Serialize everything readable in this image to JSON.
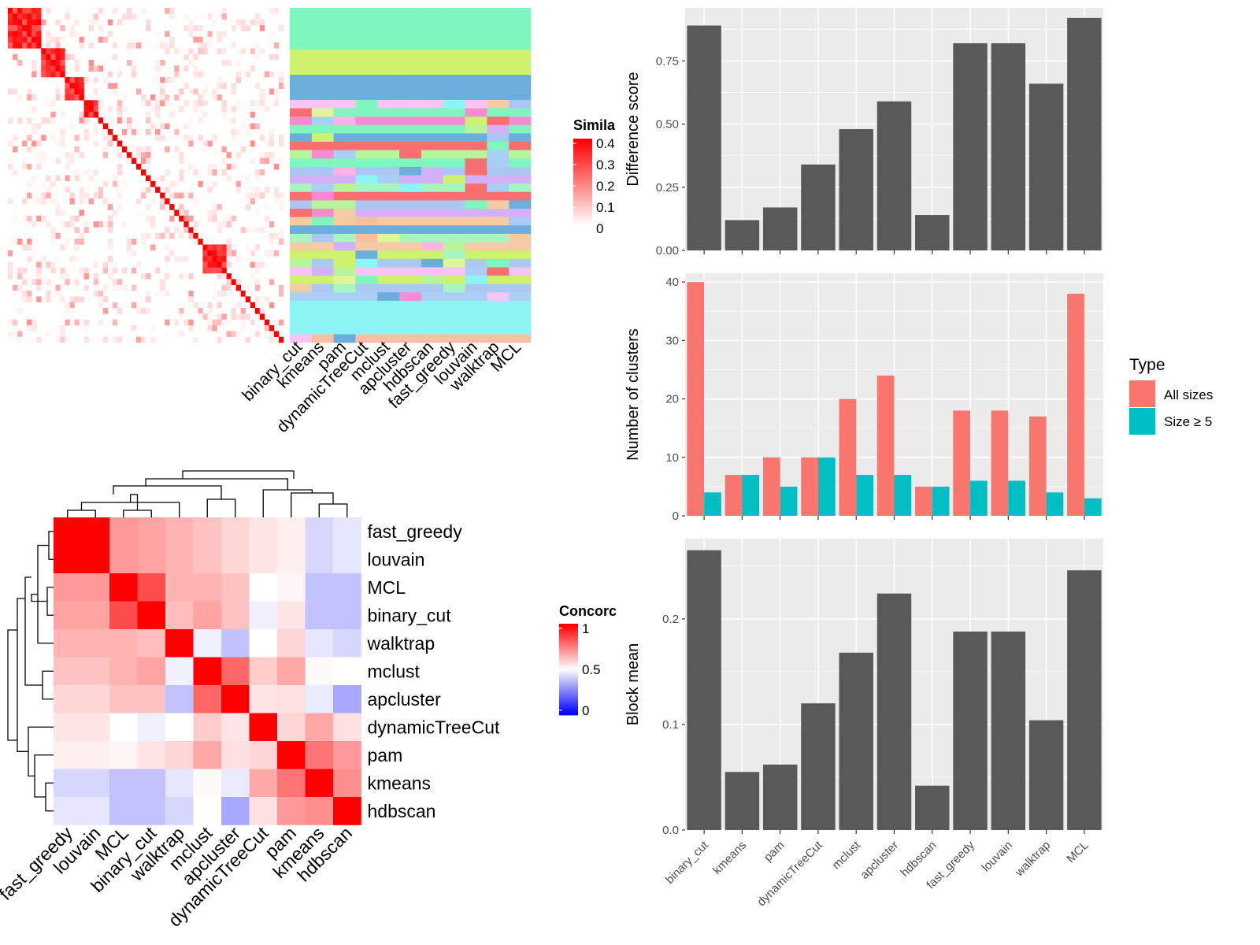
{
  "colors": {
    "panel_bg": "#EBEBEB",
    "grid": "#FFFFFF",
    "bar": "#595959",
    "all_sizes": "#F8766D",
    "size_ge5": "#00BFC4",
    "heat_high": "#FF0000",
    "heat_mid": "#FFFFFF",
    "heat_low": "#0000FF"
  },
  "methods": [
    "binary_cut",
    "kmeans",
    "pam",
    "dynamicTreeCut",
    "mclust",
    "apcluster",
    "hdbscan",
    "fast_greedy",
    "louvain",
    "walktrap",
    "MCL"
  ],
  "similarity_legend": {
    "title": "Simila",
    "ticks": [
      "0.4",
      "0.3",
      "0.2",
      "0.1",
      "0"
    ]
  },
  "concordance_legend": {
    "title": "Concorc",
    "ticks": [
      "1",
      "0.5",
      "0"
    ]
  },
  "chart_data": [
    {
      "type": "heatmap",
      "panel": "similarity-matrix",
      "legend_title": "Simila",
      "scale": [
        0,
        0.4
      ],
      "columns": [
        "binary_cut",
        "kmeans",
        "pam",
        "dynamicTreeCut",
        "mclust",
        "apcluster",
        "hdbscan",
        "fast_greedy",
        "louvain",
        "walktrap",
        "MCL"
      ]
    },
    {
      "type": "heatmap",
      "panel": "concordance",
      "legend_title": "Concorc",
      "scale": [
        0,
        1
      ],
      "rows": [
        "fast_greedy",
        "louvain",
        "MCL",
        "binary_cut",
        "walktrap",
        "mclust",
        "apcluster",
        "dynamicTreeCut",
        "pam",
        "kmeans",
        "hdbscan"
      ],
      "columns": [
        "fast_greedy",
        "louvain",
        "MCL",
        "binary_cut",
        "walktrap",
        "mclust",
        "apcluster",
        "dynamicTreeCut",
        "pam",
        "kmeans",
        "hdbscan"
      ],
      "values": [
        [
          1.0,
          1.0,
          0.7,
          0.68,
          0.65,
          0.62,
          0.58,
          0.55,
          0.53,
          0.42,
          0.45
        ],
        [
          1.0,
          1.0,
          0.7,
          0.68,
          0.65,
          0.62,
          0.58,
          0.55,
          0.53,
          0.42,
          0.45
        ],
        [
          0.7,
          0.7,
          1.0,
          0.85,
          0.65,
          0.65,
          0.62,
          0.5,
          0.52,
          0.38,
          0.38
        ],
        [
          0.68,
          0.68,
          0.85,
          1.0,
          0.63,
          0.68,
          0.62,
          0.47,
          0.55,
          0.38,
          0.38
        ],
        [
          0.65,
          0.65,
          0.65,
          0.63,
          1.0,
          0.47,
          0.38,
          0.5,
          0.58,
          0.45,
          0.42
        ],
        [
          0.62,
          0.62,
          0.65,
          0.68,
          0.47,
          1.0,
          0.8,
          0.6,
          0.67,
          0.51,
          0.5
        ],
        [
          0.58,
          0.58,
          0.62,
          0.62,
          0.38,
          0.8,
          1.0,
          0.55,
          0.56,
          0.46,
          0.33
        ],
        [
          0.55,
          0.55,
          0.5,
          0.47,
          0.5,
          0.6,
          0.55,
          1.0,
          0.58,
          0.67,
          0.56
        ],
        [
          0.53,
          0.53,
          0.52,
          0.55,
          0.58,
          0.67,
          0.56,
          0.58,
          1.0,
          0.77,
          0.7
        ],
        [
          0.42,
          0.42,
          0.38,
          0.38,
          0.45,
          0.51,
          0.46,
          0.67,
          0.77,
          1.0,
          0.72
        ],
        [
          0.45,
          0.45,
          0.38,
          0.38,
          0.42,
          0.5,
          0.33,
          0.56,
          0.7,
          0.72,
          1.0
        ]
      ]
    },
    {
      "type": "bar",
      "panel": "difference-score",
      "categories": [
        "binary_cut",
        "kmeans",
        "pam",
        "dynamicTreeCut",
        "mclust",
        "apcluster",
        "hdbscan",
        "fast_greedy",
        "louvain",
        "walktrap",
        "MCL"
      ],
      "values": [
        0.89,
        0.12,
        0.17,
        0.34,
        0.48,
        0.59,
        0.14,
        0.82,
        0.82,
        0.66,
        0.92
      ],
      "ylabel": "Difference score",
      "ylim": [
        0,
        0.96
      ],
      "yticks": [
        "0.00",
        "0.25",
        "0.50",
        "0.75"
      ]
    },
    {
      "type": "bar",
      "panel": "number-of-clusters",
      "categories": [
        "binary_cut",
        "kmeans",
        "pam",
        "dynamicTreeCut",
        "mclust",
        "apcluster",
        "hdbscan",
        "fast_greedy",
        "louvain",
        "walktrap",
        "MCL"
      ],
      "series": [
        {
          "name": "All sizes",
          "values": [
            40,
            7,
            10,
            10,
            20,
            24,
            5,
            18,
            18,
            17,
            38
          ]
        },
        {
          "name": "Size ≥ 5",
          "values": [
            4,
            7,
            5,
            10,
            7,
            7,
            5,
            6,
            6,
            4,
            3
          ]
        }
      ],
      "ylabel": "Number of clusters",
      "ylim": [
        0,
        41.5
      ],
      "yticks": [
        "0",
        "10",
        "20",
        "30",
        "40"
      ],
      "legend_title": "Type",
      "legend_position": "right"
    },
    {
      "type": "bar",
      "panel": "block-mean",
      "categories": [
        "binary_cut",
        "kmeans",
        "pam",
        "dynamicTreeCut",
        "mclust",
        "apcluster",
        "hdbscan",
        "fast_greedy",
        "louvain",
        "walktrap",
        "MCL"
      ],
      "values": [
        0.265,
        0.055,
        0.062,
        0.12,
        0.168,
        0.224,
        0.042,
        0.188,
        0.188,
        0.104,
        0.246
      ],
      "ylabel": "Block mean",
      "ylim": [
        0,
        0.276
      ],
      "yticks": [
        "0.0",
        "0.1",
        "0.2"
      ]
    }
  ]
}
